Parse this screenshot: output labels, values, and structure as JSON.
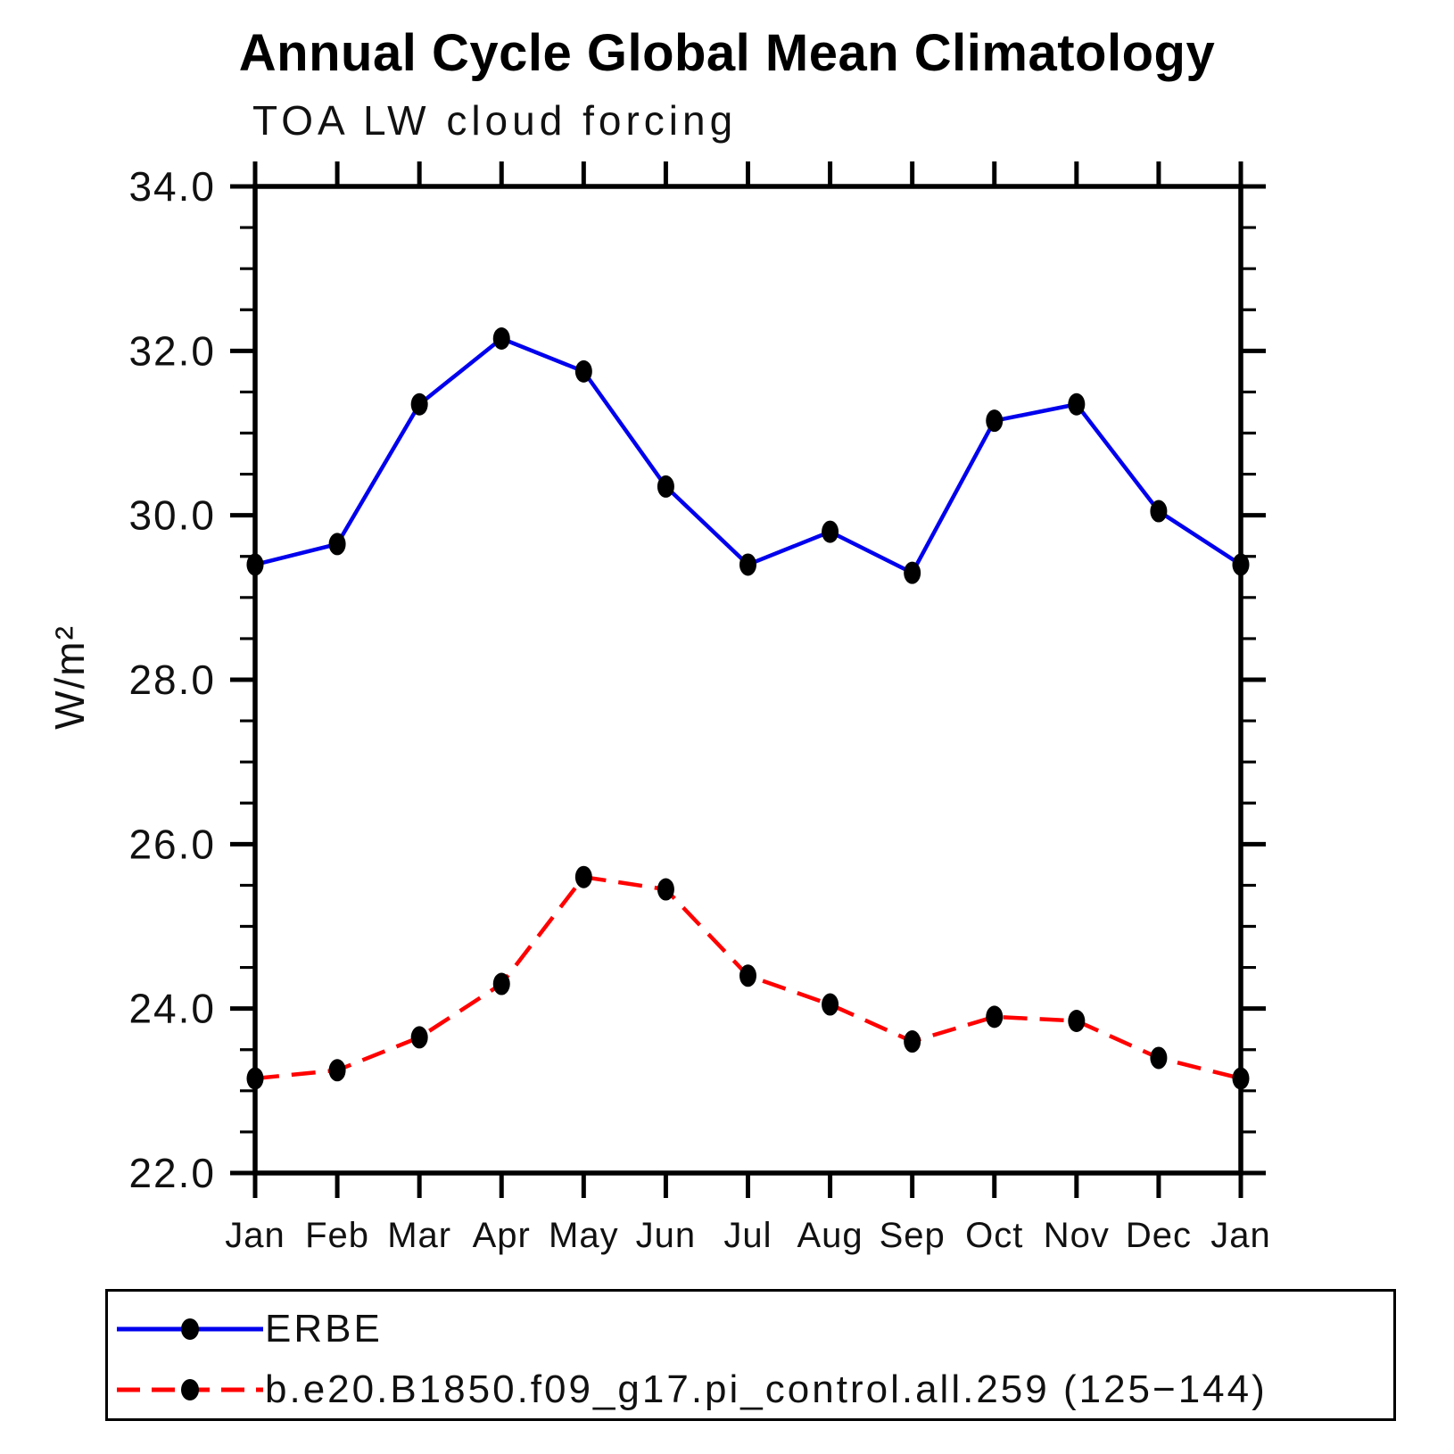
{
  "title": "Annual Cycle Global Mean Climatology",
  "subtitle": "TOA LW cloud forcing",
  "chart_data": {
    "type": "line",
    "title": "Annual Cycle Global Mean Climatology",
    "subtitle": "TOA LW cloud forcing",
    "ylabel": "W/m²",
    "xlabel": "",
    "categories": [
      "Jan",
      "Feb",
      "Mar",
      "Apr",
      "May",
      "Jun",
      "Jul",
      "Aug",
      "Sep",
      "Oct",
      "Nov",
      "Dec",
      "Jan"
    ],
    "ylim": [
      22.0,
      34.0
    ],
    "ytick_values": [
      34.0,
      32.0,
      30.0,
      28.0,
      26.0,
      24.0,
      22.0
    ],
    "ytick_labels": [
      "34.0",
      "32.0",
      "30.0",
      "28.0",
      "26.0",
      "24.0",
      "22.0"
    ],
    "y_minor_interval": 0.5,
    "grid": false,
    "legend_position": "bottom-box",
    "marker_color": "#000000",
    "series": [
      {
        "name": "ERBE",
        "color": "#0000ee",
        "line_style": "solid",
        "values": [
          29.4,
          29.65,
          31.35,
          32.15,
          31.75,
          30.35,
          29.4,
          29.8,
          29.3,
          31.15,
          31.35,
          30.05,
          29.4
        ]
      },
      {
        "name": "b.e20.B1850.f09_g17.pi_control.all.259 (125−144)",
        "color": "#ff0000",
        "line_style": "dashed",
        "values": [
          23.15,
          23.25,
          23.65,
          24.3,
          25.6,
          25.45,
          24.4,
          24.05,
          23.6,
          23.9,
          23.85,
          23.4,
          23.15
        ]
      }
    ]
  }
}
